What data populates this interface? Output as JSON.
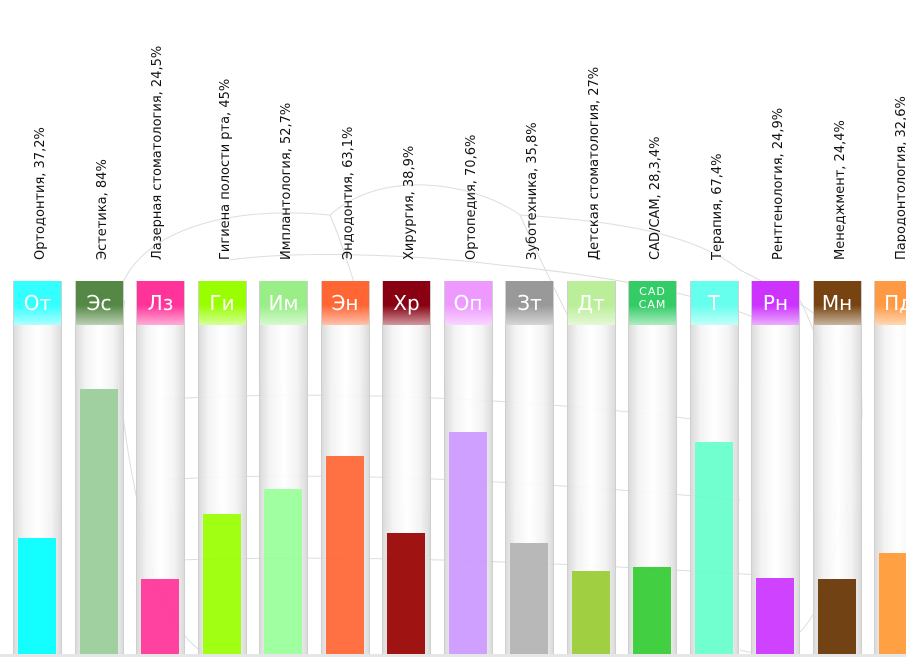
{
  "chart_data": {
    "type": "bar",
    "ylim": [
      0,
      100
    ],
    "categories": [
      "Ортодонтия, 37,2%",
      "Эстетика, 84%",
      "Лазерная стоматология, 24,5%",
      "Гигиена полости рта, 45%",
      "Имплантология, 52,7%",
      "Эндодонтия, 63,1%",
      "Хирургия, 38,9%",
      "Ортопедия, 70,6%",
      "Зуботехника, 35,8%",
      "Детская стоматология, 27%",
      "CAD/CAM, 28,3,4%",
      "Терапия, 67,4%",
      "Рентгенология, 24,9%",
      "Менеджмент, 24,4%",
      "Пародонтология, 32,6%"
    ],
    "abbreviations": [
      "От",
      "Эс",
      "Лз",
      "Ги",
      "Им",
      "Эн",
      "Хр",
      "Оп",
      "Зт",
      "Дт",
      "CAD CAM",
      "Т",
      "Рн",
      "Мн",
      "Пд"
    ],
    "values": [
      37.2,
      84,
      24.5,
      45,
      52.7,
      63.1,
      38.9,
      70.6,
      35.8,
      27,
      28.3,
      67.4,
      24.9,
      24.4,
      32.6
    ],
    "colors": [
      "#00ffff",
      "#99cc99",
      "#ff3399",
      "#99ff00",
      "#99ff99",
      "#ff6633",
      "#990000",
      "#cc99ff",
      "#b3b3b3",
      "#99cc33",
      "#33cc33",
      "#66ffcc",
      "#cc33ff",
      "#663300",
      "#ff9933"
    ],
    "badge_colors": [
      "#33ffff",
      "#558844",
      "#ff3399",
      "#99ff00",
      "#99ee88",
      "#ff6633",
      "#880011",
      "#ee99ff",
      "#999999",
      "#bbee99",
      "#33cc66",
      "#66ffee",
      "#cc33ff",
      "#774411",
      "#ff9944"
    ]
  }
}
